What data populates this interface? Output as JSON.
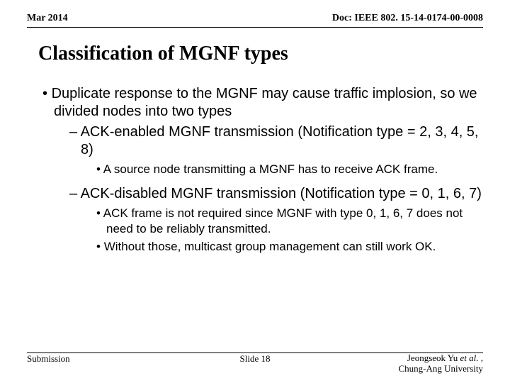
{
  "header": {
    "left": "Mar 2014",
    "right": "Doc: IEEE 802. 15-14-0174-00-0008"
  },
  "title": "Classification of MGNF types",
  "bullets": {
    "l1_a": "Duplicate response to the MGNF may cause traffic implosion, so we divided nodes into two types",
    "l2_a": "ACK-enabled MGNF transmission (Notification type = 2, 3, 4, 5, 8)",
    "l3_a": "A source node transmitting a MGNF has to receive ACK frame.",
    "l2_b": "ACK-disabled MGNF transmission (Notification type = 0, 1, 6, 7)",
    "l3_b": "ACK frame is not required since MGNF with type 0, 1, 6, 7 does not need to be reliably transmitted.",
    "l3_c": "Without those, multicast group management can still work OK."
  },
  "footer": {
    "left": "Submission",
    "center": "Slide 18",
    "right_line1_pre": "Jeongseok Yu ",
    "right_line1_ital": "et al.",
    "right_line1_post": " ,",
    "right_line2": "Chung-Ang University"
  }
}
